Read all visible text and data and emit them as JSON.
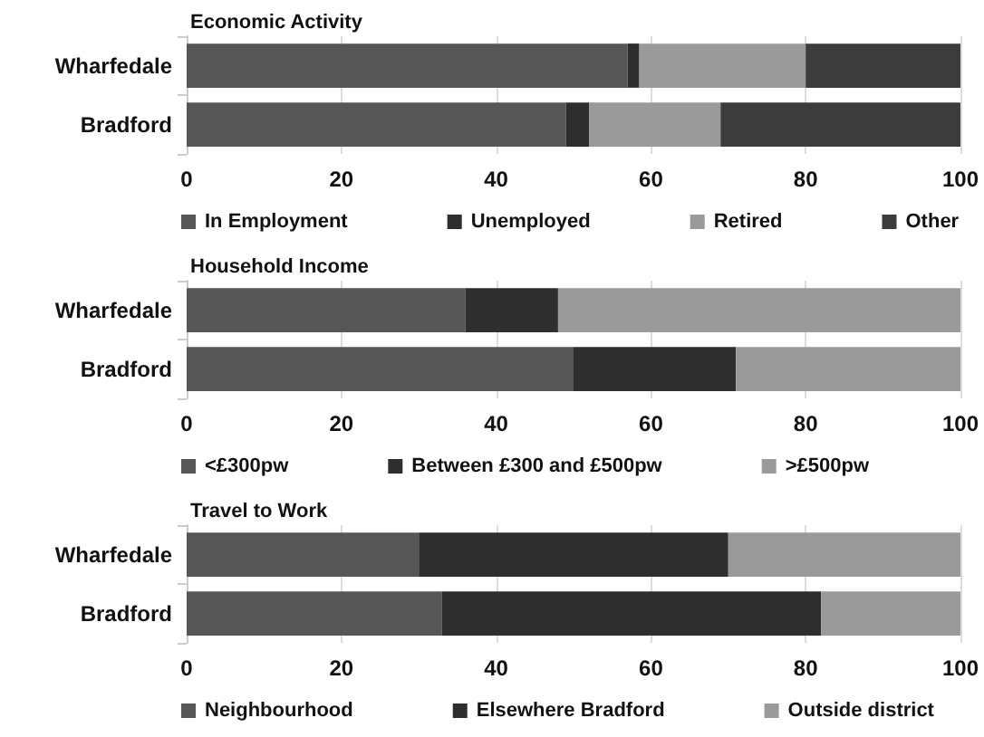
{
  "chart_data": [
    {
      "type": "bar",
      "orientation": "horizontal",
      "stacked": true,
      "title": "Economic Activity",
      "categories": [
        "Wharfedale",
        "Bradford"
      ],
      "xlim": [
        0,
        100
      ],
      "xticks": [
        0,
        20,
        40,
        60,
        80,
        100
      ],
      "grid": "x",
      "legend": "bottom",
      "series": [
        {
          "name": "In Employment",
          "color": "#565656",
          "values": [
            57,
            49
          ]
        },
        {
          "name": "Unemployed",
          "color": "#2e2e2e",
          "values": [
            1.5,
            3
          ]
        },
        {
          "name": "Retired",
          "color": "#9a9a9a",
          "values": [
            21.5,
            17
          ]
        },
        {
          "name": "Other",
          "color": "#3c3c3c",
          "values": [
            20,
            31
          ]
        }
      ]
    },
    {
      "type": "bar",
      "orientation": "horizontal",
      "stacked": true,
      "title": "Household Income",
      "categories": [
        "Wharfedale",
        "Bradford"
      ],
      "xlim": [
        0,
        100
      ],
      "xticks": [
        0,
        20,
        40,
        60,
        80,
        100
      ],
      "grid": "x",
      "legend": "bottom",
      "series": [
        {
          "name": "<£300pw",
          "color": "#565656",
          "values": [
            36,
            50
          ]
        },
        {
          "name": "Between £300 and £500pw",
          "color": "#2e2e2e",
          "values": [
            12,
            21
          ]
        },
        {
          "name": ">£500pw",
          "color": "#9a9a9a",
          "values": [
            52,
            29
          ]
        }
      ]
    },
    {
      "type": "bar",
      "orientation": "horizontal",
      "stacked": true,
      "title": "Travel to Work",
      "categories": [
        "Wharfedale",
        "Bradford"
      ],
      "xlim": [
        0,
        100
      ],
      "xticks": [
        0,
        20,
        40,
        60,
        80,
        100
      ],
      "grid": "x",
      "legend": "bottom",
      "series": [
        {
          "name": "Neighbourhood",
          "color": "#565656",
          "values": [
            30,
            33
          ]
        },
        {
          "name": "Elsewhere Bradford",
          "color": "#2e2e2e",
          "values": [
            40,
            49
          ]
        },
        {
          "name": "Outside district",
          "color": "#9a9a9a",
          "values": [
            30,
            18
          ]
        }
      ]
    }
  ]
}
